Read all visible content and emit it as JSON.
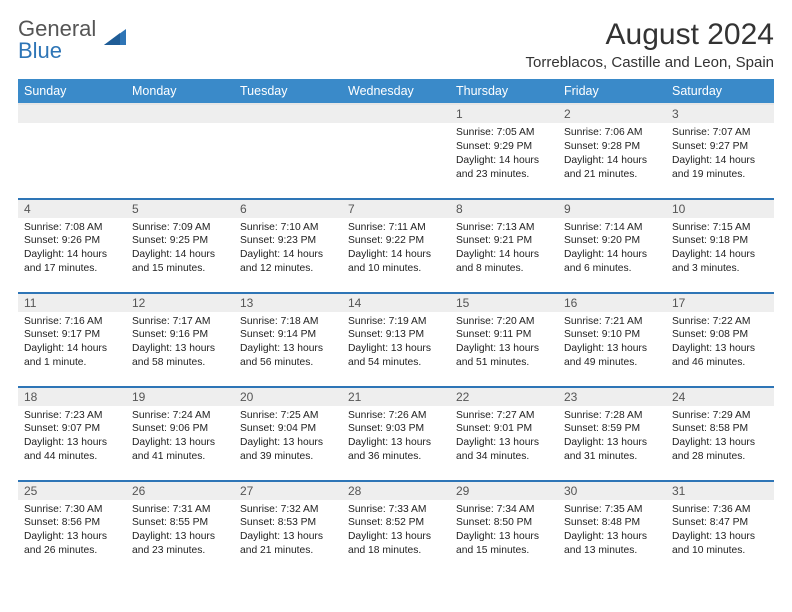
{
  "logo": {
    "line1": "General",
    "line2": "Blue"
  },
  "title": "August 2024",
  "location": "Torreblacos, Castille and Leon, Spain",
  "colors": {
    "header_bg": "#3a8ac9",
    "header_text": "#ffffff",
    "rule": "#2e75b6",
    "daynum_bg": "#eeeeee",
    "text": "#222222"
  },
  "day_headers": [
    "Sunday",
    "Monday",
    "Tuesday",
    "Wednesday",
    "Thursday",
    "Friday",
    "Saturday"
  ],
  "weeks": [
    [
      null,
      null,
      null,
      null,
      {
        "n": "1",
        "sr": "7:05 AM",
        "ss": "9:29 PM",
        "dl": "14 hours and 23 minutes."
      },
      {
        "n": "2",
        "sr": "7:06 AM",
        "ss": "9:28 PM",
        "dl": "14 hours and 21 minutes."
      },
      {
        "n": "3",
        "sr": "7:07 AM",
        "ss": "9:27 PM",
        "dl": "14 hours and 19 minutes."
      }
    ],
    [
      {
        "n": "4",
        "sr": "7:08 AM",
        "ss": "9:26 PM",
        "dl": "14 hours and 17 minutes."
      },
      {
        "n": "5",
        "sr": "7:09 AM",
        "ss": "9:25 PM",
        "dl": "14 hours and 15 minutes."
      },
      {
        "n": "6",
        "sr": "7:10 AM",
        "ss": "9:23 PM",
        "dl": "14 hours and 12 minutes."
      },
      {
        "n": "7",
        "sr": "7:11 AM",
        "ss": "9:22 PM",
        "dl": "14 hours and 10 minutes."
      },
      {
        "n": "8",
        "sr": "7:13 AM",
        "ss": "9:21 PM",
        "dl": "14 hours and 8 minutes."
      },
      {
        "n": "9",
        "sr": "7:14 AM",
        "ss": "9:20 PM",
        "dl": "14 hours and 6 minutes."
      },
      {
        "n": "10",
        "sr": "7:15 AM",
        "ss": "9:18 PM",
        "dl": "14 hours and 3 minutes."
      }
    ],
    [
      {
        "n": "11",
        "sr": "7:16 AM",
        "ss": "9:17 PM",
        "dl": "14 hours and 1 minute."
      },
      {
        "n": "12",
        "sr": "7:17 AM",
        "ss": "9:16 PM",
        "dl": "13 hours and 58 minutes."
      },
      {
        "n": "13",
        "sr": "7:18 AM",
        "ss": "9:14 PM",
        "dl": "13 hours and 56 minutes."
      },
      {
        "n": "14",
        "sr": "7:19 AM",
        "ss": "9:13 PM",
        "dl": "13 hours and 54 minutes."
      },
      {
        "n": "15",
        "sr": "7:20 AM",
        "ss": "9:11 PM",
        "dl": "13 hours and 51 minutes."
      },
      {
        "n": "16",
        "sr": "7:21 AM",
        "ss": "9:10 PM",
        "dl": "13 hours and 49 minutes."
      },
      {
        "n": "17",
        "sr": "7:22 AM",
        "ss": "9:08 PM",
        "dl": "13 hours and 46 minutes."
      }
    ],
    [
      {
        "n": "18",
        "sr": "7:23 AM",
        "ss": "9:07 PM",
        "dl": "13 hours and 44 minutes."
      },
      {
        "n": "19",
        "sr": "7:24 AM",
        "ss": "9:06 PM",
        "dl": "13 hours and 41 minutes."
      },
      {
        "n": "20",
        "sr": "7:25 AM",
        "ss": "9:04 PM",
        "dl": "13 hours and 39 minutes."
      },
      {
        "n": "21",
        "sr": "7:26 AM",
        "ss": "9:03 PM",
        "dl": "13 hours and 36 minutes."
      },
      {
        "n": "22",
        "sr": "7:27 AM",
        "ss": "9:01 PM",
        "dl": "13 hours and 34 minutes."
      },
      {
        "n": "23",
        "sr": "7:28 AM",
        "ss": "8:59 PM",
        "dl": "13 hours and 31 minutes."
      },
      {
        "n": "24",
        "sr": "7:29 AM",
        "ss": "8:58 PM",
        "dl": "13 hours and 28 minutes."
      }
    ],
    [
      {
        "n": "25",
        "sr": "7:30 AM",
        "ss": "8:56 PM",
        "dl": "13 hours and 26 minutes."
      },
      {
        "n": "26",
        "sr": "7:31 AM",
        "ss": "8:55 PM",
        "dl": "13 hours and 23 minutes."
      },
      {
        "n": "27",
        "sr": "7:32 AM",
        "ss": "8:53 PM",
        "dl": "13 hours and 21 minutes."
      },
      {
        "n": "28",
        "sr": "7:33 AM",
        "ss": "8:52 PM",
        "dl": "13 hours and 18 minutes."
      },
      {
        "n": "29",
        "sr": "7:34 AM",
        "ss": "8:50 PM",
        "dl": "13 hours and 15 minutes."
      },
      {
        "n": "30",
        "sr": "7:35 AM",
        "ss": "8:48 PM",
        "dl": "13 hours and 13 minutes."
      },
      {
        "n": "31",
        "sr": "7:36 AM",
        "ss": "8:47 PM",
        "dl": "13 hours and 10 minutes."
      }
    ]
  ],
  "labels": {
    "sunrise": "Sunrise: ",
    "sunset": "Sunset: ",
    "daylight": "Daylight: "
  }
}
